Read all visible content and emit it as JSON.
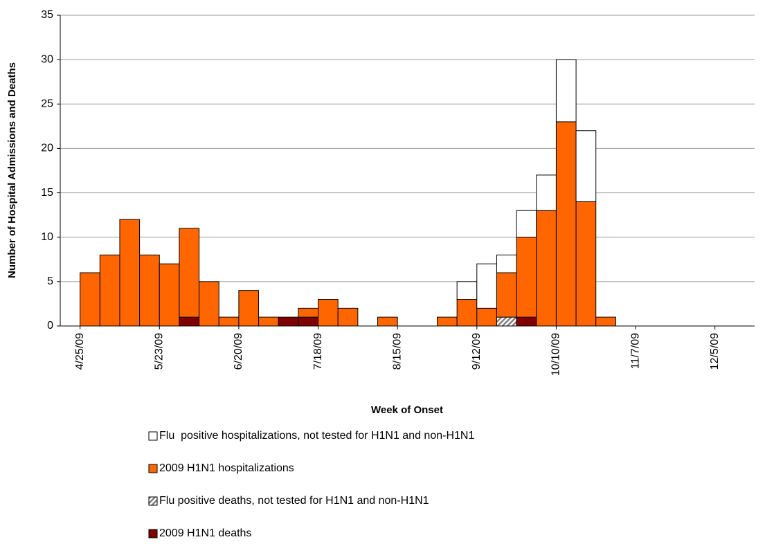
{
  "chart_data": {
    "type": "stacked_bar",
    "x_label": "Week of Onset",
    "y_label": "Number of Hospital Admissions and Deaths",
    "categories": [
      null,
      "4/25/09",
      null,
      null,
      null,
      "5/23/09",
      null,
      null,
      null,
      "6/20/09",
      null,
      null,
      null,
      "7/18/09",
      null,
      null,
      null,
      "8/15/09",
      null,
      null,
      null,
      "9/12/09",
      null,
      null,
      null,
      "10/10/09",
      null,
      null,
      null,
      "11/7/09",
      null,
      null,
      null,
      "12/5/09",
      null
    ],
    "series": [
      {
        "name": "Flu  positive hospitalizations, not tested for H1N1 and non-H1N1",
        "color": "#ffffff",
        "values": [
          null,
          null,
          null,
          null,
          null,
          null,
          null,
          null,
          null,
          null,
          null,
          null,
          null,
          null,
          null,
          null,
          null,
          null,
          null,
          null,
          2,
          5,
          2,
          3,
          4,
          7,
          8,
          null,
          null,
          null,
          null,
          null,
          null,
          null,
          null
        ]
      },
      {
        "name": "2009 H1N1 hospitalizations",
        "color": "#ff6600",
        "values": [
          null,
          6,
          8,
          12,
          8,
          7,
          10,
          5,
          1,
          4,
          1,
          null,
          1,
          3,
          2,
          null,
          1,
          null,
          null,
          1,
          3,
          2,
          5,
          9,
          13,
          23,
          14,
          1,
          null,
          null,
          null,
          null,
          null,
          null,
          null
        ]
      },
      {
        "name": "Flu positive deaths, not tested for H1N1 and non-H1N1",
        "color": "#808080",
        "hatch": true,
        "values": [
          null,
          null,
          null,
          null,
          null,
          null,
          null,
          null,
          null,
          null,
          null,
          null,
          null,
          null,
          null,
          null,
          null,
          null,
          null,
          null,
          null,
          null,
          1,
          null,
          null,
          null,
          null,
          null,
          null,
          null,
          null,
          null,
          null,
          null,
          null
        ]
      },
      {
        "name": "2009 H1N1 deaths",
        "color": "#800000",
        "values": [
          null,
          null,
          null,
          null,
          null,
          null,
          1,
          null,
          null,
          null,
          null,
          1,
          1,
          null,
          null,
          null,
          null,
          null,
          null,
          null,
          null,
          null,
          null,
          1,
          null,
          null,
          null,
          null,
          null,
          null,
          null,
          null,
          null,
          null,
          null
        ]
      }
    ],
    "ylim": [
      0,
      35
    ],
    "yticks": [
      0,
      5,
      10,
      15,
      20,
      25,
      30,
      35
    ],
    "grid": true
  }
}
